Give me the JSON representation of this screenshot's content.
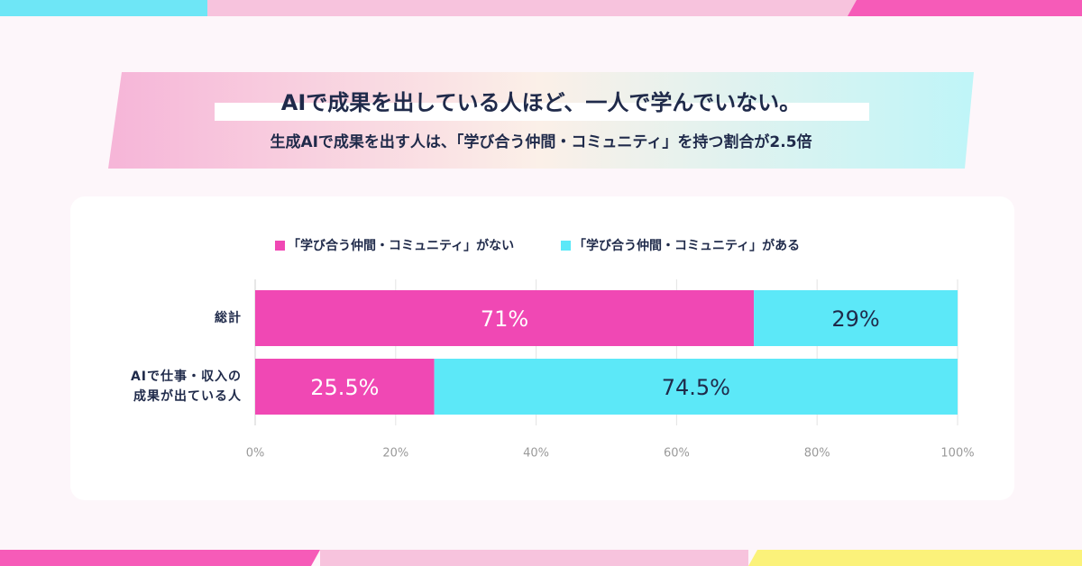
{
  "chart_data": {
    "type": "stacked-barh",
    "title": "AIで成果を出している人ほど、一人で学んでいない。",
    "subtitle": "生成AIで成果を出す人は、「学び合う仲間・コミュニティ」を持つ割合が2.5倍",
    "categories": [
      "総計",
      "AIで仕事・収入の\n成果が出ている人"
    ],
    "series": [
      {
        "name": "「学び合う仲間・コミュニティ」がない",
        "color": "#f048b4",
        "values": [
          71,
          25.5
        ],
        "value_labels": [
          "71%",
          "25.5%"
        ]
      },
      {
        "name": "「学び合う仲間・コミュニティ」がある",
        "color": "#5ce8f8",
        "values": [
          29,
          74.5
        ],
        "value_labels": [
          "29%",
          "74.5%"
        ]
      }
    ],
    "xlim": [
      0,
      100
    ],
    "xticks": [
      {
        "value": 0,
        "label": "0%"
      },
      {
        "value": 20,
        "label": "20%"
      },
      {
        "value": 40,
        "label": "40%"
      },
      {
        "value": 60,
        "label": "60%"
      },
      {
        "value": 80,
        "label": "80%"
      },
      {
        "value": 100,
        "label": "100%"
      }
    ],
    "grid": true
  }
}
